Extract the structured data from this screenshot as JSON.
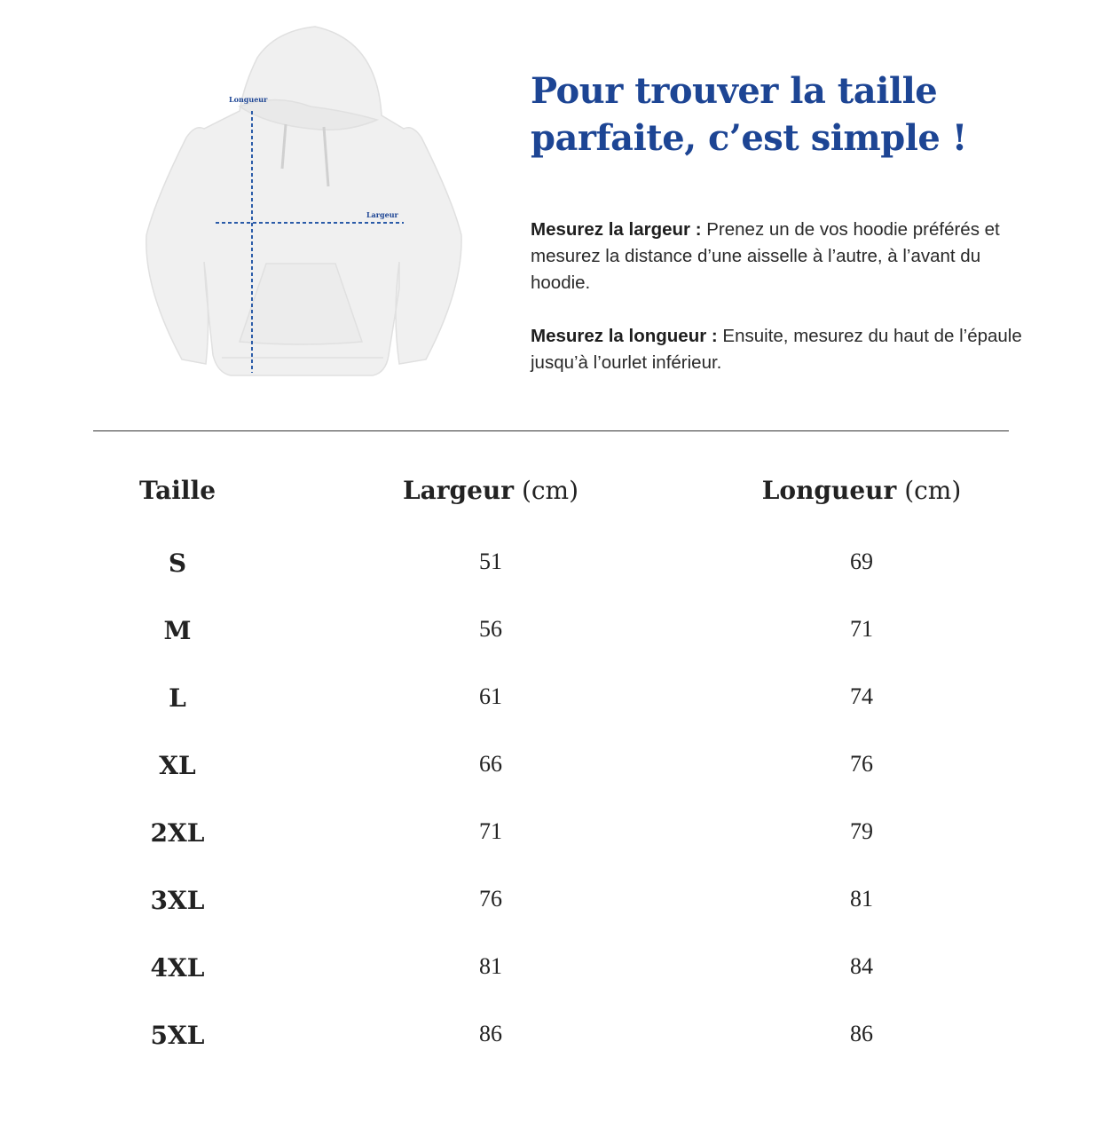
{
  "illustration": {
    "length_label": "Longueur",
    "width_label": "Largeur",
    "line_color": "#2a5ba8"
  },
  "title_lines": [
    "Pour trouver la taille",
    "parfaite, c’est simple !"
  ],
  "title_color": "#1d4594",
  "instructions": [
    {
      "label": "Mesurez la largeur :",
      "text": " Prenez un de vos hoodie préférés et mesurez la distance d’une aisselle à l’autre, à l’avant du hoodie."
    },
    {
      "label": "Mesurez la longueur :",
      "text": " Ensuite, mesurez du haut de l’épaule jusqu’à l’ourlet inférieur."
    }
  ],
  "table": {
    "headers": [
      {
        "label": "Taille",
        "unit": ""
      },
      {
        "label": "Largeur",
        "unit": " (cm)"
      },
      {
        "label": "Longueur",
        "unit": " (cm)"
      }
    ],
    "rows": [
      {
        "size": "S",
        "width": "51",
        "length": "69"
      },
      {
        "size": "M",
        "width": "56",
        "length": "71"
      },
      {
        "size": "L",
        "width": "61",
        "length": "74"
      },
      {
        "size": "XL",
        "width": "66",
        "length": "76"
      },
      {
        "size": "2XL",
        "width": "71",
        "length": "79"
      },
      {
        "size": "3XL",
        "width": "76",
        "length": "81"
      },
      {
        "size": "4XL",
        "width": "81",
        "length": "84"
      },
      {
        "size": "5XL",
        "width": "86",
        "length": "86"
      }
    ]
  }
}
